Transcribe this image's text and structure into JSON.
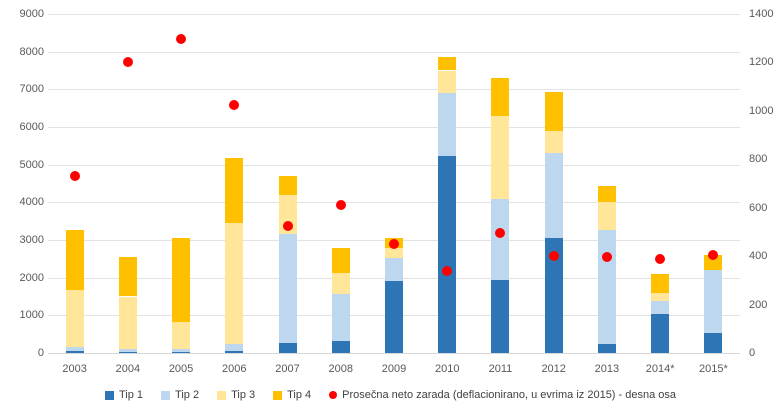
{
  "chart_data": {
    "type": "bar",
    "subtype": "stacked-column-with-scatter-overlay",
    "title": "",
    "grid": true,
    "legend_position": "bottom",
    "categories": [
      "2003",
      "2004",
      "2005",
      "2006",
      "2007",
      "2008",
      "2009",
      "2010",
      "2011",
      "2012",
      "2013",
      "2014*",
      "2015*"
    ],
    "series": [
      {
        "name": "Tip 1",
        "color": "#2E75B6",
        "axis": "left",
        "values": [
          50,
          30,
          30,
          50,
          260,
          320,
          1920,
          5240,
          1950,
          3050,
          240,
          1030,
          540
        ]
      },
      {
        "name": "Tip 2",
        "color": "#BDD7EE",
        "axis": "left",
        "values": [
          110,
          80,
          80,
          180,
          2900,
          1250,
          590,
          1660,
          2140,
          2260,
          3030,
          360,
          1660
        ]
      },
      {
        "name": "Tip 3",
        "color": "#FFE699",
        "axis": "left",
        "values": [
          1510,
          1390,
          710,
          3220,
          1040,
          560,
          290,
          600,
          2200,
          590,
          750,
          200,
          0
        ]
      },
      {
        "name": "Tip 4",
        "color": "#FFC000",
        "axis": "left",
        "values": [
          1600,
          1060,
          2230,
          1720,
          500,
          670,
          260,
          370,
          1020,
          1020,
          420,
          520,
          400
        ]
      }
    ],
    "scatter_series": {
      "name": "Prosečna neto zarada (deflacionirano, u evrima iz 2015) - desna osa",
      "color": "#FF0000",
      "axis": "right",
      "values": [
        730,
        1200,
        1295,
        1025,
        525,
        610,
        450,
        340,
        495,
        400,
        395,
        390,
        405
      ]
    },
    "left_axis": {
      "min": 0,
      "max": 9000,
      "step": 1000,
      "tick_labels": [
        "0",
        "1000",
        "2000",
        "3000",
        "4000",
        "5000",
        "6000",
        "7000",
        "8000",
        "9000"
      ]
    },
    "right_axis": {
      "min": 0,
      "max": 1400,
      "step": 200,
      "tick_labels": [
        "0",
        "200",
        "400",
        "600",
        "800",
        "1000",
        "1200",
        "1400"
      ]
    }
  },
  "colors": {
    "gridline": "#E2E2E2",
    "baseline": "#D9D9D9",
    "tick_text": "#595959",
    "legend_text": "#404040",
    "background": "#FFFFFF"
  }
}
